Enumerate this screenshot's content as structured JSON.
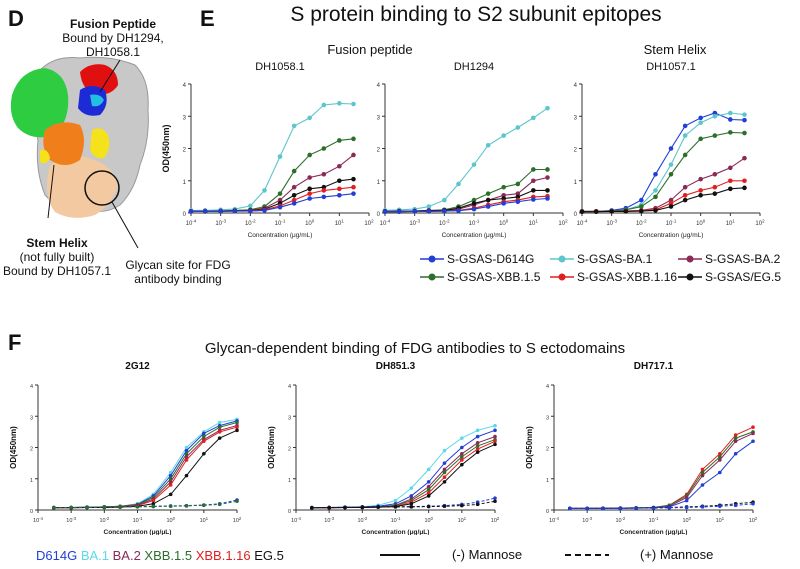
{
  "panels": {
    "D": "D",
    "E": "E",
    "F": "F"
  },
  "structure": {
    "fusion_title": "Fusion Peptide",
    "fusion_bound": "Bound by DH1294,",
    "fusion_bound2": "DH1058.1",
    "stem_title": "Stem Helix",
    "stem_sub": "(not fully built)",
    "stem_bound": "Bound by DH1057.1",
    "glycan_line1": "Glycan site for FDG",
    "glycan_line2": "antibody binding"
  },
  "panel_e": {
    "title": "S protein binding to S2 subunit epitopes",
    "group_fusion": "Fusion peptide",
    "group_stem": "Stem Helix"
  },
  "panel_f": {
    "title": "Glycan-dependent binding of FDG antibodies to S ectodomains"
  },
  "legend_e": [
    {
      "label": "S-GSAS-D614G",
      "color": "#1f3fd6"
    },
    {
      "label": "S-GSAS-BA.1",
      "color": "#5cc6cc"
    },
    {
      "label": "S-GSAS-BA.2",
      "color": "#8a2a56"
    },
    {
      "label": "S-GSAS-XBB.1.5",
      "color": "#2c6e2c"
    },
    {
      "label": "S-GSAS-XBB.1.16",
      "color": "#e02020"
    },
    {
      "label": "S-GSAS/EG.5",
      "color": "#111111"
    }
  ],
  "legend_f": {
    "variants": [
      {
        "label": "D614G",
        "color": "#1f3fd6"
      },
      {
        "label": "BA.1",
        "color": "#5cd8e8"
      },
      {
        "label": "BA.2",
        "color": "#8a2a56"
      },
      {
        "label": "XBB.1.5",
        "color": "#2c6e2c"
      },
      {
        "label": "XBB.1.16",
        "color": "#e02020"
      },
      {
        "label": "EG.5",
        "color": "#111111"
      }
    ],
    "minus_mannose": "(-) Mannose",
    "plus_mannose": "(+) Mannose"
  },
  "chart_data": [
    {
      "type": "line",
      "title": "DH1058.1",
      "xlabel": "Concentration (μg/mL)",
      "ylabel": "OD(450nm)",
      "xscale": "log",
      "xlim": [
        0.0001,
        100
      ],
      "ylim": [
        0,
        4
      ],
      "x": [
        0.0001,
        0.0003,
        0.001,
        0.003,
        0.01,
        0.03,
        0.1,
        0.3,
        1,
        3,
        10,
        30
      ],
      "series": [
        {
          "color": "#5cc6cc",
          "values": [
            0.08,
            0.08,
            0.1,
            0.12,
            0.22,
            0.7,
            1.75,
            2.7,
            2.95,
            3.35,
            3.4,
            3.38
          ]
        },
        {
          "color": "#2c6e2c",
          "values": [
            0.05,
            0.06,
            0.06,
            0.08,
            0.1,
            0.2,
            0.6,
            1.3,
            1.8,
            2.0,
            2.25,
            2.3
          ]
        },
        {
          "color": "#8a2a56",
          "values": [
            0.05,
            0.06,
            0.06,
            0.07,
            0.08,
            0.15,
            0.4,
            0.8,
            1.1,
            1.2,
            1.45,
            1.8
          ]
        },
        {
          "color": "#111111",
          "values": [
            0.05,
            0.05,
            0.06,
            0.07,
            0.08,
            0.12,
            0.3,
            0.55,
            0.75,
            0.8,
            1.0,
            1.05
          ]
        },
        {
          "color": "#e02020",
          "values": [
            0.05,
            0.05,
            0.05,
            0.06,
            0.07,
            0.1,
            0.22,
            0.4,
            0.6,
            0.7,
            0.75,
            0.8
          ]
        },
        {
          "color": "#1f3fd6",
          "values": [
            0.05,
            0.05,
            0.05,
            0.06,
            0.06,
            0.08,
            0.18,
            0.3,
            0.45,
            0.5,
            0.55,
            0.6
          ]
        }
      ]
    },
    {
      "type": "line",
      "title": "DH1294",
      "xlabel": "Concentration (μg/mL)",
      "ylabel": "",
      "xscale": "log",
      "xlim": [
        0.0001,
        100
      ],
      "ylim": [
        0,
        4
      ],
      "x": [
        0.0001,
        0.0003,
        0.001,
        0.003,
        0.01,
        0.03,
        0.1,
        0.3,
        1,
        3,
        10,
        30
      ],
      "series": [
        {
          "color": "#5cc6cc",
          "values": [
            0.08,
            0.1,
            0.12,
            0.2,
            0.4,
            0.9,
            1.5,
            2.1,
            2.4,
            2.65,
            2.95,
            3.25
          ]
        },
        {
          "color": "#2c6e2c",
          "values": [
            0.05,
            0.06,
            0.06,
            0.08,
            0.1,
            0.2,
            0.4,
            0.6,
            0.8,
            0.9,
            1.35,
            1.35
          ]
        },
        {
          "color": "#8a2a56",
          "values": [
            0.05,
            0.05,
            0.06,
            0.07,
            0.08,
            0.12,
            0.25,
            0.4,
            0.55,
            0.6,
            1.0,
            1.1
          ]
        },
        {
          "color": "#111111",
          "values": [
            0.05,
            0.05,
            0.06,
            0.07,
            0.08,
            0.15,
            0.3,
            0.4,
            0.45,
            0.5,
            0.7,
            0.7
          ]
        },
        {
          "color": "#e02020",
          "values": [
            0.04,
            0.04,
            0.05,
            0.05,
            0.06,
            0.08,
            0.15,
            0.25,
            0.35,
            0.4,
            0.5,
            0.52
          ]
        },
        {
          "color": "#1f3fd6",
          "values": [
            0.04,
            0.04,
            0.05,
            0.05,
            0.06,
            0.07,
            0.12,
            0.2,
            0.3,
            0.35,
            0.42,
            0.45
          ]
        }
      ]
    },
    {
      "type": "line",
      "title": "DH1057.1",
      "xlabel": "Concentration (μg/mL)",
      "ylabel": "",
      "xscale": "log",
      "xlim": [
        0.0001,
        100
      ],
      "ylim": [
        0,
        4
      ],
      "x": [
        0.0001,
        0.0003,
        0.001,
        0.003,
        0.01,
        0.03,
        0.1,
        0.3,
        1,
        3,
        10,
        30
      ],
      "series": [
        {
          "color": "#1f3fd6",
          "values": [
            0.05,
            0.05,
            0.08,
            0.15,
            0.4,
            1.2,
            2.0,
            2.7,
            2.95,
            3.1,
            2.9,
            2.88
          ]
        },
        {
          "color": "#5cc6cc",
          "values": [
            0.05,
            0.05,
            0.06,
            0.1,
            0.25,
            0.7,
            1.5,
            2.4,
            2.8,
            3.0,
            3.1,
            3.05
          ]
        },
        {
          "color": "#2c6e2c",
          "values": [
            0.05,
            0.05,
            0.06,
            0.1,
            0.2,
            0.5,
            1.2,
            1.8,
            2.3,
            2.4,
            2.5,
            2.48
          ]
        },
        {
          "color": "#8a2a56",
          "values": [
            0.05,
            0.05,
            0.05,
            0.06,
            0.08,
            0.15,
            0.4,
            0.8,
            1.05,
            1.2,
            1.4,
            1.7
          ]
        },
        {
          "color": "#e02020",
          "values": [
            0.04,
            0.05,
            0.05,
            0.06,
            0.07,
            0.1,
            0.3,
            0.55,
            0.7,
            0.8,
            1.0,
            1.0
          ]
        },
        {
          "color": "#111111",
          "values": [
            0.04,
            0.04,
            0.05,
            0.05,
            0.06,
            0.08,
            0.2,
            0.4,
            0.55,
            0.6,
            0.75,
            0.78
          ]
        }
      ]
    },
    {
      "type": "line",
      "title": "2G12",
      "xlabel": "Concentration (μg/μL)",
      "ylabel": "OD(450nm)",
      "xscale": "log",
      "xlim": [
        0.0001,
        100
      ],
      "ylim": [
        0,
        4
      ],
      "x": [
        0.0003,
        0.001,
        0.003,
        0.01,
        0.03,
        0.1,
        0.3,
        1,
        3,
        10,
        30,
        100
      ],
      "series": [
        {
          "color": "#5cd8e8",
          "style": "solid",
          "values": [
            0.08,
            0.08,
            0.09,
            0.1,
            0.12,
            0.2,
            0.5,
            1.2,
            2.0,
            2.5,
            2.8,
            2.9
          ]
        },
        {
          "color": "#1f3fd6",
          "style": "solid",
          "values": [
            0.08,
            0.08,
            0.09,
            0.1,
            0.12,
            0.18,
            0.45,
            1.1,
            1.9,
            2.45,
            2.7,
            2.85
          ]
        },
        {
          "color": "#2c6e2c",
          "style": "solid",
          "values": [
            0.08,
            0.08,
            0.09,
            0.1,
            0.12,
            0.17,
            0.4,
            1.0,
            1.8,
            2.35,
            2.65,
            2.8
          ]
        },
        {
          "color": "#8a2a56",
          "style": "solid",
          "values": [
            0.07,
            0.08,
            0.08,
            0.09,
            0.1,
            0.15,
            0.35,
            0.9,
            1.7,
            2.25,
            2.55,
            2.7
          ]
        },
        {
          "color": "#e02020",
          "style": "solid",
          "values": [
            0.07,
            0.07,
            0.08,
            0.09,
            0.1,
            0.14,
            0.3,
            0.8,
            1.6,
            2.2,
            2.5,
            2.65
          ]
        },
        {
          "color": "#111111",
          "style": "solid",
          "values": [
            0.07,
            0.07,
            0.08,
            0.08,
            0.09,
            0.12,
            0.2,
            0.5,
            1.1,
            1.8,
            2.3,
            2.55
          ]
        },
        {
          "color": "#1f3fd6",
          "style": "dashed",
          "values": [
            0.08,
            0.08,
            0.09,
            0.1,
            0.1,
            0.11,
            0.12,
            0.13,
            0.14,
            0.16,
            0.2,
            0.32
          ]
        },
        {
          "color": "#2c6e2c",
          "style": "dashed",
          "values": [
            0.07,
            0.08,
            0.08,
            0.09,
            0.1,
            0.1,
            0.11,
            0.12,
            0.13,
            0.15,
            0.18,
            0.28
          ]
        }
      ]
    },
    {
      "type": "line",
      "title": "DH851.3",
      "xlabel": "Concentration (μg/μL)",
      "ylabel": "OD(450nm)",
      "xscale": "log",
      "xlim": [
        0.0001,
        100
      ],
      "ylim": [
        0,
        4
      ],
      "x": [
        0.0003,
        0.001,
        0.003,
        0.01,
        0.03,
        0.1,
        0.3,
        1,
        3,
        10,
        30,
        100
      ],
      "series": [
        {
          "color": "#5cd8e8",
          "style": "solid",
          "values": [
            0.08,
            0.08,
            0.09,
            0.1,
            0.15,
            0.3,
            0.7,
            1.3,
            1.9,
            2.3,
            2.55,
            2.7
          ]
        },
        {
          "color": "#1f3fd6",
          "style": "solid",
          "values": [
            0.08,
            0.08,
            0.09,
            0.1,
            0.12,
            0.2,
            0.45,
            0.9,
            1.5,
            2.0,
            2.35,
            2.55
          ]
        },
        {
          "color": "#8a2a56",
          "style": "solid",
          "values": [
            0.07,
            0.08,
            0.08,
            0.09,
            0.1,
            0.15,
            0.35,
            0.75,
            1.3,
            1.8,
            2.15,
            2.35
          ]
        },
        {
          "color": "#2c6e2c",
          "style": "solid",
          "values": [
            0.07,
            0.07,
            0.08,
            0.09,
            0.1,
            0.14,
            0.3,
            0.65,
            1.2,
            1.7,
            2.05,
            2.25
          ]
        },
        {
          "color": "#e02020",
          "style": "solid",
          "values": [
            0.07,
            0.07,
            0.08,
            0.08,
            0.09,
            0.12,
            0.25,
            0.55,
            1.05,
            1.6,
            1.95,
            2.2
          ]
        },
        {
          "color": "#111111",
          "style": "solid",
          "values": [
            0.07,
            0.07,
            0.08,
            0.08,
            0.09,
            0.11,
            0.2,
            0.45,
            0.9,
            1.45,
            1.85,
            2.1
          ]
        },
        {
          "color": "#1f3fd6",
          "style": "dashed",
          "values": [
            0.08,
            0.08,
            0.09,
            0.1,
            0.1,
            0.1,
            0.11,
            0.12,
            0.14,
            0.18,
            0.25,
            0.38
          ]
        },
        {
          "color": "#111111",
          "style": "dashed",
          "values": [
            0.07,
            0.08,
            0.08,
            0.09,
            0.1,
            0.1,
            0.1,
            0.11,
            0.12,
            0.14,
            0.18,
            0.28
          ]
        }
      ]
    },
    {
      "type": "line",
      "title": "DH717.1",
      "xlabel": "Concentration (μg/μL)",
      "ylabel": "OD(450nm)",
      "xscale": "log",
      "xlim": [
        0.0001,
        100
      ],
      "ylim": [
        0,
        4
      ],
      "x": [
        0.0003,
        0.001,
        0.003,
        0.01,
        0.03,
        0.1,
        0.3,
        1,
        3,
        10,
        30,
        100
      ],
      "series": [
        {
          "color": "#e02020",
          "style": "solid",
          "values": [
            0.05,
            0.05,
            0.06,
            0.06,
            0.07,
            0.08,
            0.15,
            0.5,
            1.3,
            1.8,
            2.4,
            2.65
          ]
        },
        {
          "color": "#2c6e2c",
          "style": "solid",
          "values": [
            0.05,
            0.05,
            0.06,
            0.06,
            0.07,
            0.08,
            0.15,
            0.45,
            1.2,
            1.7,
            2.3,
            2.5
          ]
        },
        {
          "color": "#8a2a56",
          "style": "solid",
          "values": [
            0.05,
            0.05,
            0.05,
            0.06,
            0.06,
            0.07,
            0.12,
            0.4,
            1.1,
            1.6,
            2.2,
            2.45
          ]
        },
        {
          "color": "#1f3fd6",
          "style": "solid",
          "values": [
            0.05,
            0.05,
            0.05,
            0.05,
            0.06,
            0.07,
            0.1,
            0.3,
            0.8,
            1.2,
            1.8,
            2.2
          ]
        },
        {
          "color": "#111111",
          "style": "dashed",
          "values": [
            0.05,
            0.05,
            0.05,
            0.06,
            0.06,
            0.07,
            0.08,
            0.1,
            0.12,
            0.15,
            0.2,
            0.25
          ]
        },
        {
          "color": "#1f3fd6",
          "style": "dashed",
          "values": [
            0.05,
            0.05,
            0.05,
            0.05,
            0.06,
            0.06,
            0.07,
            0.08,
            0.1,
            0.12,
            0.15,
            0.2
          ]
        }
      ]
    }
  ]
}
